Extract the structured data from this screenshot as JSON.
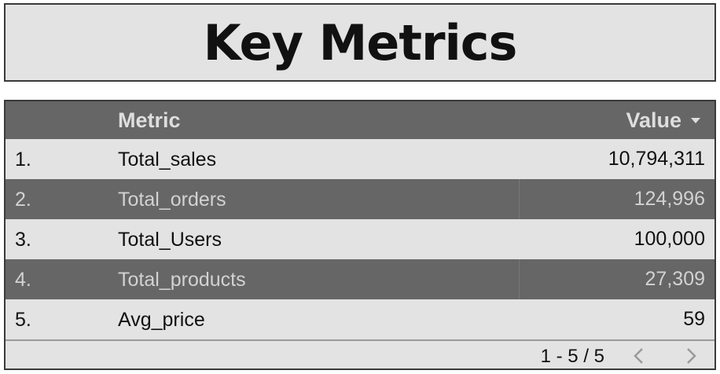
{
  "header": {
    "title": "Key Metrics"
  },
  "table": {
    "columns": {
      "metric": "Metric",
      "value": "Value"
    },
    "sort_icon": "sort-descending-icon",
    "rows": [
      {
        "index": "1.",
        "metric": "Total_sales",
        "value": "10,794,311"
      },
      {
        "index": "2.",
        "metric": "Total_orders",
        "value": "124,996"
      },
      {
        "index": "3.",
        "metric": "Total_Users",
        "value": "100,000"
      },
      {
        "index": "4.",
        "metric": "Total_products",
        "value": "27,309"
      },
      {
        "index": "5.",
        "metric": "Avg_price",
        "value": "59"
      }
    ]
  },
  "pagination": {
    "range": "1 - 5 / 5",
    "prev_icon": "chevron-left-icon",
    "next_icon": "chevron-right-icon"
  },
  "colors": {
    "header_bg": "#666666",
    "light_row": "#e3e3e3",
    "dark_row": "#666666",
    "border": "#3a3a3a"
  }
}
